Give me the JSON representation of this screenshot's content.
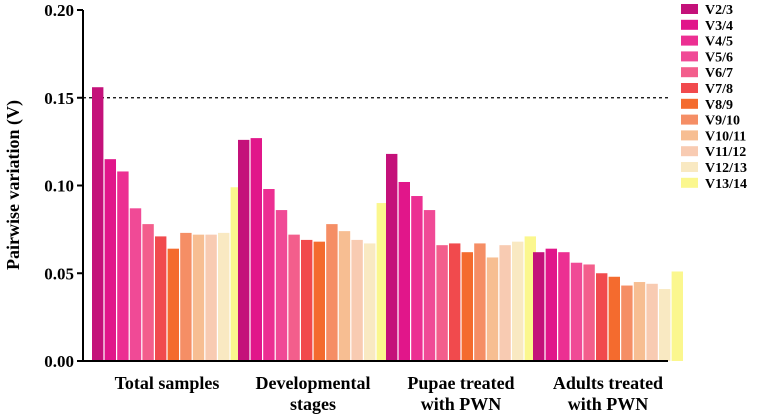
{
  "chart_data": {
    "type": "bar",
    "title": "",
    "xlabel": "",
    "ylabel": "Pairwise variation (V)",
    "ylim": [
      0,
      0.2
    ],
    "yticks": [
      "0.00",
      "0.05",
      "0.10",
      "0.15",
      "0.20"
    ],
    "ytick_values": [
      0,
      0.05,
      0.1,
      0.15,
      0.2
    ],
    "threshold": 0.15,
    "legend_position": "right",
    "categories": [
      [
        "Total samples"
      ],
      [
        "Developmental",
        "stages"
      ],
      [
        "Pupae treated",
        "with PWN"
      ],
      [
        "Adults treated",
        "with PWN"
      ]
    ],
    "series": [
      {
        "name": "V2/3",
        "color": "#C4117A",
        "values": [
          0.156,
          0.126,
          0.118,
          0.062
        ]
      },
      {
        "name": "V3/4",
        "color": "#E1168A",
        "values": [
          0.115,
          0.127,
          0.102,
          0.064
        ]
      },
      {
        "name": "V4/5",
        "color": "#EC2F92",
        "values": [
          0.108,
          0.098,
          0.094,
          0.062
        ]
      },
      {
        "name": "V5/6",
        "color": "#F04A96",
        "values": [
          0.087,
          0.086,
          0.086,
          0.056
        ]
      },
      {
        "name": "V6/7",
        "color": "#F35E8C",
        "values": [
          0.078,
          0.072,
          0.066,
          0.055
        ]
      },
      {
        "name": "V7/8",
        "color": "#F14A4D",
        "values": [
          0.071,
          0.069,
          0.067,
          0.05
        ]
      },
      {
        "name": "V8/9",
        "color": "#F46B2E",
        "values": [
          0.064,
          0.068,
          0.062,
          0.048
        ]
      },
      {
        "name": "V9/10",
        "color": "#F58E65",
        "values": [
          0.073,
          0.078,
          0.067,
          0.043
        ]
      },
      {
        "name": "V10/11",
        "color": "#F7BE92",
        "values": [
          0.072,
          0.074,
          0.059,
          0.045
        ]
      },
      {
        "name": "V11/12",
        "color": "#F8CBB2",
        "values": [
          0.072,
          0.069,
          0.066,
          0.044
        ]
      },
      {
        "name": "V12/13",
        "color": "#F9E9C2",
        "values": [
          0.073,
          0.067,
          0.068,
          0.041
        ]
      },
      {
        "name": "V13/14",
        "color": "#FBF78E",
        "values": [
          0.099,
          0.09,
          0.071,
          0.051
        ]
      }
    ]
  }
}
